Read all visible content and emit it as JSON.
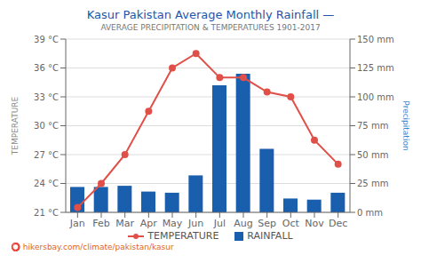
{
  "chart_data": {
    "type": "combo",
    "title": "Kasur Pakistan Average Monthly Rainfall —",
    "subtitle": "AVERAGE PRECIPITATION & TEMPERATURES 1901-2017",
    "categories": [
      "Jan",
      "Feb",
      "Mar",
      "Apr",
      "May",
      "Jun",
      "Jul",
      "Aug",
      "Sep",
      "Oct",
      "Nov",
      "Dec"
    ],
    "series": [
      {
        "name": "TEMPERATURE",
        "type": "line",
        "color": "#e05048",
        "marker": "o",
        "values": [
          21.5,
          24.0,
          27.0,
          31.5,
          36.0,
          37.5,
          35.0,
          35.0,
          33.5,
          33.0,
          28.5,
          26.0
        ]
      },
      {
        "name": "RAINFALL",
        "type": "bar",
        "color": "#1a5fad",
        "axis": "y2",
        "values": [
          22,
          22,
          23,
          18,
          17,
          32,
          110,
          120,
          55,
          12,
          11,
          17
        ]
      }
    ],
    "ylabel": "TEMPERATURE",
    "y2label": "Precipitation",
    "ylim": [
      21,
      39
    ],
    "yticks": [
      {
        "value": 21,
        "label": "21 °C"
      },
      {
        "value": 24,
        "label": "24 °C"
      },
      {
        "value": 27,
        "label": "27 °C"
      },
      {
        "value": 30,
        "label": "30 °C"
      },
      {
        "value": 33,
        "label": "33 °C"
      },
      {
        "value": 36,
        "label": "36 °C"
      },
      {
        "value": 39,
        "label": "39 °C"
      }
    ],
    "y2lim": [
      0,
      150
    ],
    "y2ticks": [
      {
        "value": 0,
        "label": "0 mm"
      },
      {
        "value": 25,
        "label": "25 mm"
      },
      {
        "value": 50,
        "label": "50 mm"
      },
      {
        "value": 75,
        "label": "75 mm"
      },
      {
        "value": 100,
        "label": "100 mm"
      },
      {
        "value": 125,
        "label": "125 mm"
      },
      {
        "value": 150,
        "label": "150 mm"
      }
    ],
    "grid": true,
    "legend": "bottom",
    "annotations": [
      "⭕ hikersbay.com/climate/pakistan/kasur"
    ]
  }
}
